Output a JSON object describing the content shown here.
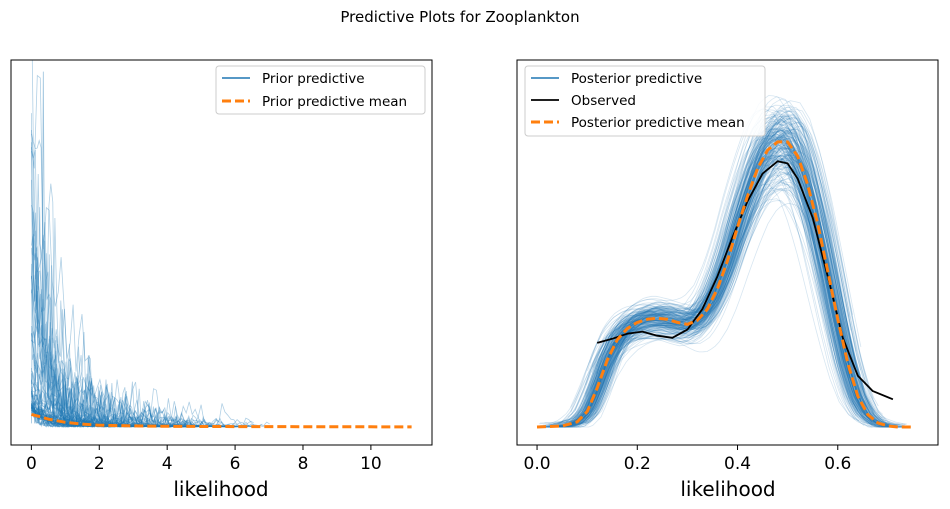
{
  "figure": {
    "suptitle": "Predictive Plots for Zooplankton"
  },
  "colors": {
    "predictive": "#1f77b4",
    "observed": "#000000",
    "mean": "#ff7f0e"
  },
  "chart_data": [
    {
      "type": "line",
      "panel": "left",
      "xlabel": "likelihood",
      "ylabel": "",
      "xlim": [
        -0.6,
        11.8
      ],
      "ylim": [
        -0.02,
        1.0
      ],
      "xticks": [
        0,
        2,
        4,
        6,
        8,
        10
      ],
      "xtick_labels": [
        "0",
        "2",
        "4",
        "6",
        "8",
        "10"
      ],
      "y_ticks_shown": false,
      "grid": false,
      "legend": {
        "position": "top-right",
        "entries": [
          {
            "label": "Prior predictive",
            "style": "solid"
          },
          {
            "label": "Prior predictive mean",
            "style": "dashed"
          }
        ]
      },
      "series": [
        {
          "name": "Prior predictive mean",
          "style": "dashed",
          "x": [
            0,
            0.2,
            0.5,
            1.0,
            1.5,
            2.0,
            3.0,
            4.0,
            6.0,
            8.0,
            10.0,
            11.2
          ],
          "y": [
            0.035,
            0.03,
            0.022,
            0.013,
            0.008,
            0.005,
            0.003,
            0.002,
            0.001,
            0.0008,
            0.0005,
            0.0004
          ]
        }
      ]
    },
    {
      "type": "line",
      "panel": "right",
      "xlabel": "likelihood",
      "ylabel": "",
      "xlim": [
        -0.04,
        0.8
      ],
      "ylim": [
        -0.1,
        3.5
      ],
      "xticks": [
        0.0,
        0.2,
        0.4,
        0.6
      ],
      "xtick_labels": [
        "0.0",
        "0.2",
        "0.4",
        "0.6"
      ],
      "y_ticks_shown": false,
      "grid": false,
      "legend": {
        "position": "top-left",
        "entries": [
          {
            "label": "Posterior predictive",
            "style": "solid"
          },
          {
            "label": "Observed",
            "style": "solid"
          },
          {
            "label": "Posterior predictive mean",
            "style": "dashed"
          }
        ]
      },
      "series": [
        {
          "name": "Observed",
          "style": "solid",
          "x": [
            0.12,
            0.15,
            0.18,
            0.21,
            0.24,
            0.27,
            0.3,
            0.33,
            0.36,
            0.39,
            0.42,
            0.45,
            0.48,
            0.5,
            0.52,
            0.55,
            0.58,
            0.61,
            0.64,
            0.67,
            0.71
          ],
          "y": [
            0.82,
            0.86,
            0.91,
            0.93,
            0.89,
            0.87,
            0.95,
            1.15,
            1.47,
            1.85,
            2.2,
            2.47,
            2.59,
            2.57,
            2.42,
            2.04,
            1.47,
            0.87,
            0.5,
            0.35,
            0.27
          ]
        },
        {
          "name": "Posterior predictive mean",
          "style": "dashed",
          "x": [
            0.0,
            0.05,
            0.08,
            0.1,
            0.12,
            0.14,
            0.16,
            0.18,
            0.2,
            0.22,
            0.24,
            0.26,
            0.28,
            0.3,
            0.32,
            0.34,
            0.36,
            0.38,
            0.4,
            0.42,
            0.44,
            0.46,
            0.48,
            0.5,
            0.52,
            0.54,
            0.56,
            0.58,
            0.6,
            0.62,
            0.64,
            0.66,
            0.68,
            0.7,
            0.72,
            0.75
          ],
          "y": [
            0.0,
            0.01,
            0.05,
            0.15,
            0.38,
            0.65,
            0.85,
            0.96,
            1.02,
            1.05,
            1.06,
            1.05,
            1.02,
            1.0,
            1.04,
            1.15,
            1.35,
            1.62,
            1.95,
            2.25,
            2.52,
            2.7,
            2.78,
            2.78,
            2.64,
            2.36,
            1.98,
            1.52,
            1.05,
            0.62,
            0.3,
            0.12,
            0.04,
            0.01,
            0.0,
            0.0
          ]
        }
      ]
    }
  ]
}
